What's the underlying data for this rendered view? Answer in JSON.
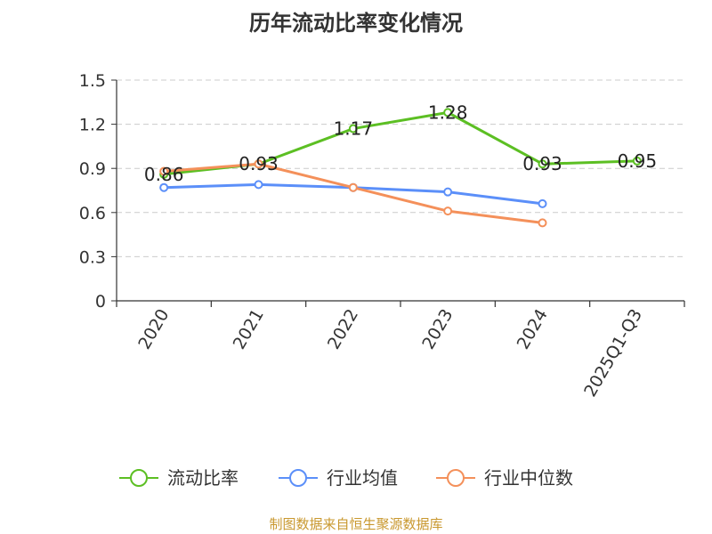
{
  "title": "历年流动比率变化情况",
  "source": "制图数据来自恒生聚源数据库",
  "colors": {
    "flow_ratio": "#5cbf23",
    "industry_avg": "#5b8ff9",
    "industry_median": "#f4905a",
    "source_text": "#c9982f",
    "grid": "#cccccc",
    "axis": "#333333"
  },
  "chart_data": {
    "type": "line",
    "title": "历年流动比率变化情况",
    "categories": [
      "2020",
      "2021",
      "2022",
      "2023",
      "2024",
      "2025Q1-Q3"
    ],
    "ylim": [
      0,
      1.5
    ],
    "yticks": [
      "0",
      "0.3",
      "0.6",
      "0.9",
      "1.2",
      "1.5"
    ],
    "grid": true,
    "legend": "bottom",
    "series": [
      {
        "name": "流动比率",
        "values": [
          0.86,
          0.93,
          1.17,
          1.28,
          0.93,
          0.95
        ],
        "labels": [
          "0.86",
          "0.93",
          "1.17",
          "1.28",
          "0.93",
          "0.95"
        ],
        "color": "#5cbf23"
      },
      {
        "name": "行业均值",
        "values": [
          0.77,
          0.79,
          0.77,
          0.74,
          0.66,
          null
        ],
        "color": "#5b8ff9"
      },
      {
        "name": "行业中位数",
        "values": [
          0.88,
          0.93,
          0.77,
          0.61,
          0.53,
          null
        ],
        "color": "#f4905a"
      }
    ]
  }
}
